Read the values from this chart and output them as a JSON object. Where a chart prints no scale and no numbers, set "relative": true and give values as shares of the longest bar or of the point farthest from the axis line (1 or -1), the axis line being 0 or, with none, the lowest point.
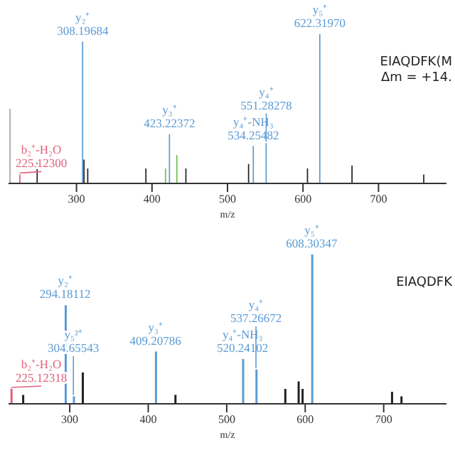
{
  "chart_data": [
    {
      "type": "bar",
      "relative": true,
      "xlabel": "m/z",
      "xlim": [
        210,
        790
      ],
      "xticks": [
        300,
        400,
        500,
        600,
        700
      ],
      "tick_labels": "x",
      "x": [
        212,
        225.123,
        248,
        308.19684,
        310,
        315,
        392,
        418,
        423.22372,
        433,
        445,
        528,
        534.25482,
        551.28278,
        606,
        622.3197,
        665,
        760
      ],
      "values": [
        0.5,
        0.06,
        0.15,
        0.95,
        0.16,
        0.1,
        0.1,
        0.1,
        0.33,
        0.19,
        0.1,
        0.13,
        0.25,
        0.27,
        0.1,
        1,
        0.12,
        0.06
      ],
      "colors": [
        "#a6a6a6",
        "#e0607e",
        "#222222",
        "#5b9bd5",
        "#222222",
        "#222222",
        "#222222",
        "#70c050",
        "#5b9bd5",
        "#70c050",
        "#222222",
        "#222222",
        "#5b9bd5",
        "#5b9bd5",
        "#222222",
        "#5b9bd5",
        "#222222",
        "#222222"
      ],
      "annotations": [
        {
          "text": "b₂⁺-H₂O\n225.12300",
          "x": 225.123,
          "y": 0.06
        },
        {
          "text": "y₂⁺\n308.19684",
          "x": 308.19684,
          "y": 0.95
        },
        {
          "text": "y₃⁺\n423.22372",
          "x": 423.22372,
          "y": 0.33
        },
        {
          "text": "y₄⁺-NH₃\n534.25482",
          "x": 534.25482,
          "y": 0.25
        },
        {
          "text": "y₄⁺\n551.28278",
          "x": 551.28278,
          "y": 0.27
        },
        {
          "text": "y₅⁺\n622.31970",
          "x": 622.3197,
          "y": 1
        },
        "EIAQDFK(M",
        "Δm = +14."
      ]
    },
    {
      "type": "bar",
      "relative": true,
      "xlabel": "m/z",
      "xlim": [
        222,
        780
      ],
      "xticks": [
        300,
        400,
        500,
        600,
        700
      ],
      "tick_labels": "x",
      "x": [
        225.12318,
        240,
        294.18112,
        304.65543,
        316,
        409.20786,
        434,
        520.24102,
        537.26672,
        574,
        591,
        596,
        608.30347,
        710,
        722
      ],
      "values": [
        0.1,
        0.06,
        0.66,
        0.05,
        0.21,
        0.35,
        0.06,
        0.3,
        0.23,
        0.1,
        0.15,
        0.1,
        1,
        0.08,
        0.05
      ],
      "colors": [
        "#e0607e",
        "#222222",
        "#5b9bd5",
        "#5b9bd5",
        "#222222",
        "#5b9bd5",
        "#222222",
        "#5b9bd5",
        "#5b9bd5",
        "#222222",
        "#222222",
        "#222222",
        "#5b9bd5",
        "#222222",
        "#222222"
      ],
      "annotations": [
        {
          "text": "b₂⁺-H₂O\n225.12318",
          "x": 225.12318,
          "y": 0.1
        },
        {
          "text": "y₂⁺\n294.18112",
          "x": 294.18112,
          "y": 0.66
        },
        {
          "text": "y₅²⁺\n304.65543",
          "x": 304.65543,
          "y": 0.05
        },
        {
          "text": "y₃⁺\n409.20786",
          "x": 409.20786,
          "y": 0.35
        },
        {
          "text": "y₄⁺-NH₃\n520.24102",
          "x": 520.24102,
          "y": 0.3
        },
        {
          "text": "y₄⁺\n537.26672",
          "x": 537.26672,
          "y": 0.23
        },
        {
          "text": "y₅⁺\n608.30347",
          "x": 608.30347,
          "y": 1
        },
        "EIAQDFK"
      ]
    }
  ]
}
